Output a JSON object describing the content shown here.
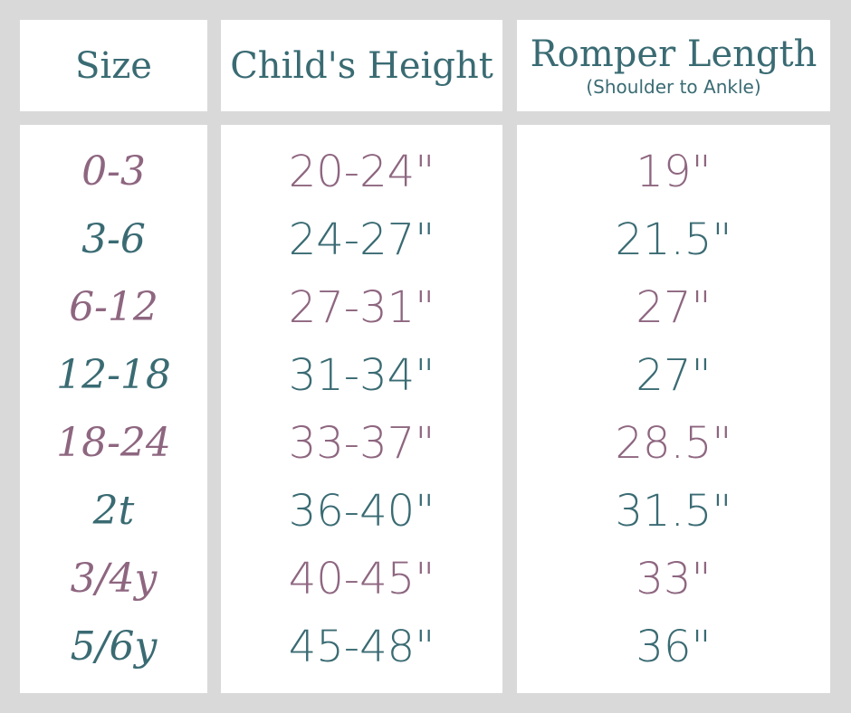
{
  "colors": {
    "teal": "#3a6b73",
    "mauve": "#8e6680",
    "background": "#d9d9d9"
  },
  "headers": {
    "size": "Size",
    "height": "Child's Height",
    "length": "Romper Length",
    "length_sub": "(Shoulder to Ankle)"
  },
  "rows": [
    {
      "size": "0-3",
      "height": "20-24\"",
      "length": "19\""
    },
    {
      "size": "3-6",
      "height": "24-27\"",
      "length": "21.5\""
    },
    {
      "size": "6-12",
      "height": "27-31\"",
      "length": "27\""
    },
    {
      "size": "12-18",
      "height": "31-34\"",
      "length": "27\""
    },
    {
      "size": "18-24",
      "height": "33-37\"",
      "length": "28.5\""
    },
    {
      "size": "2t",
      "height": "36-40\"",
      "length": "31.5\""
    },
    {
      "size": "3/4y",
      "height": "40-45\"",
      "length": "33\""
    },
    {
      "size": "5/6y",
      "height": "45-48\"",
      "length": "36\""
    }
  ]
}
